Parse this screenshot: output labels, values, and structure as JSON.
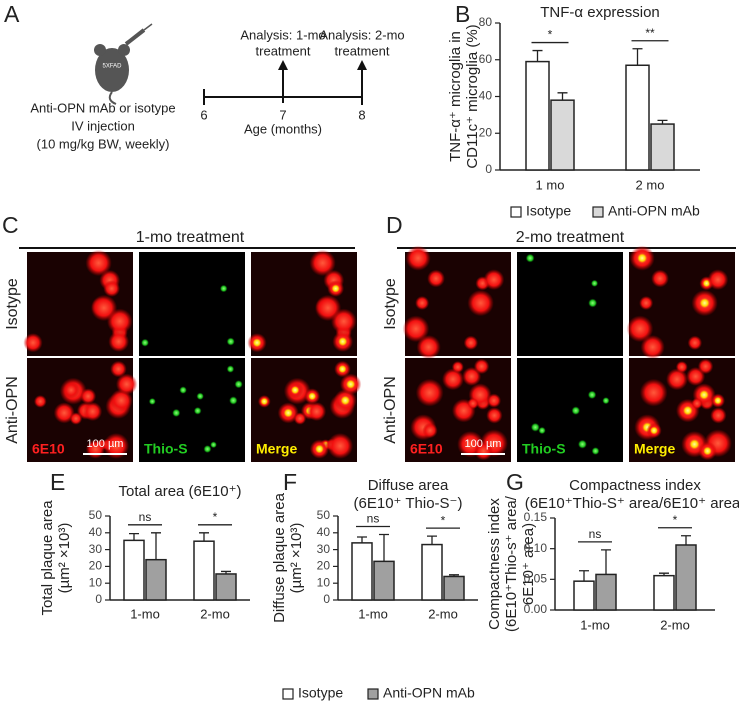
{
  "figure": {
    "panel_letters": [
      "A",
      "B",
      "C",
      "D",
      "E",
      "F",
      "G"
    ],
    "panel_a": {
      "mouse_label": "5XFAD",
      "injection": [
        "Anti-OPN mAb or isotype",
        "IV injection",
        "(10 mg/kg BW, weekly)"
      ],
      "analysis_1": [
        "Analysis: 1-mo",
        "treatment"
      ],
      "analysis_2": [
        "Analysis: 2-mo",
        "treatment"
      ],
      "timeline_ticks": [
        "6",
        "7",
        "8"
      ],
      "timeline_label": "Age (months)"
    },
    "panel_c": {
      "title": "1-mo treatment",
      "rows": [
        "Isotype",
        "Anti-OPN"
      ],
      "channels": [
        "6E10",
        "Thio-S",
        "Merge"
      ],
      "scale_bar": "100 µm"
    },
    "panel_d": {
      "title": "2-mo treatment",
      "rows": [
        "Isotype",
        "Anti-OPN"
      ],
      "channels": [
        "6E10",
        "Thio-S",
        "Merge"
      ],
      "scale_bar": "100 µm"
    }
  },
  "chart_data": [
    {
      "type": "bar",
      "title": [
        "TNF-α expression"
      ],
      "ylabel": [
        "TNF-α⁺ microglia in",
        "CD11c⁺ microglia (%)"
      ],
      "categories": [
        "1 mo",
        "2 mo"
      ],
      "series": [
        {
          "name": "Isotype",
          "color": "#ffffff",
          "values": [
            59,
            57
          ],
          "errors": [
            6,
            9
          ]
        },
        {
          "name": "Anti-OPN mAb",
          "color": "#d9d9d9",
          "values": [
            38,
            25
          ],
          "errors": [
            4,
            2
          ]
        }
      ],
      "significance": [
        "*",
        "**"
      ],
      "ylim": [
        0,
        80
      ],
      "yticks": [
        0,
        20,
        40,
        60,
        80
      ]
    },
    {
      "type": "bar",
      "title": [
        "Total area (6E10⁺)"
      ],
      "ylabel": [
        "Total plaque area",
        "(µm² ×10³)"
      ],
      "categories": [
        "1-mo",
        "2-mo"
      ],
      "series": [
        {
          "color": "#ffffff",
          "values": [
            35.5,
            35
          ],
          "errors": [
            4,
            5
          ]
        },
        {
          "color": "#a0a0a0",
          "values": [
            24,
            15.5
          ],
          "errors": [
            16,
            1.5
          ]
        }
      ],
      "significance": [
        "ns",
        "*"
      ],
      "ylim": [
        0,
        50
      ],
      "yticks": [
        0,
        10,
        20,
        30,
        40,
        50
      ]
    },
    {
      "type": "bar",
      "title": [
        "Diffuse area",
        "(6E10⁺ Thio-S⁻)"
      ],
      "ylabel": [
        "Diffuse plaque area",
        "(µm² ×10³)"
      ],
      "categories": [
        "1-mo",
        "2-mo"
      ],
      "series": [
        {
          "name": "Isotype",
          "color": "#ffffff",
          "values": [
            34,
            33
          ],
          "errors": [
            3.5,
            5
          ]
        },
        {
          "name": "Anti-OPN mAb",
          "color": "#a0a0a0",
          "values": [
            23,
            14
          ],
          "errors": [
            16,
            1
          ]
        }
      ],
      "significance": [
        "ns",
        "*"
      ],
      "ylim": [
        0,
        50
      ],
      "yticks": [
        0,
        10,
        20,
        30,
        40,
        50
      ]
    },
    {
      "type": "bar",
      "title": [
        "Compactness index",
        "(6E10⁺Thio-S⁺ area/6E10⁺ area)"
      ],
      "ylabel": [
        "Compactness index",
        "(6E10⁺Thio-s⁺ area/",
        "6E10⁺ area)"
      ],
      "categories": [
        "1-mo",
        "2-mo"
      ],
      "series": [
        {
          "color": "#ffffff",
          "values": [
            0.047,
            0.056
          ],
          "errors": [
            0.017,
            0.004
          ]
        },
        {
          "color": "#a0a0a0",
          "values": [
            0.058,
            0.106
          ],
          "errors": [
            0.04,
            0.015
          ]
        }
      ],
      "significance": [
        "ns",
        "*"
      ],
      "ylim": [
        0,
        0.15
      ],
      "yticks": [
        {
          "value": 0,
          "label": "0.00"
        },
        0.05,
        {
          "value": 0.1,
          "label": "0.10"
        },
        0.15
      ]
    }
  ]
}
